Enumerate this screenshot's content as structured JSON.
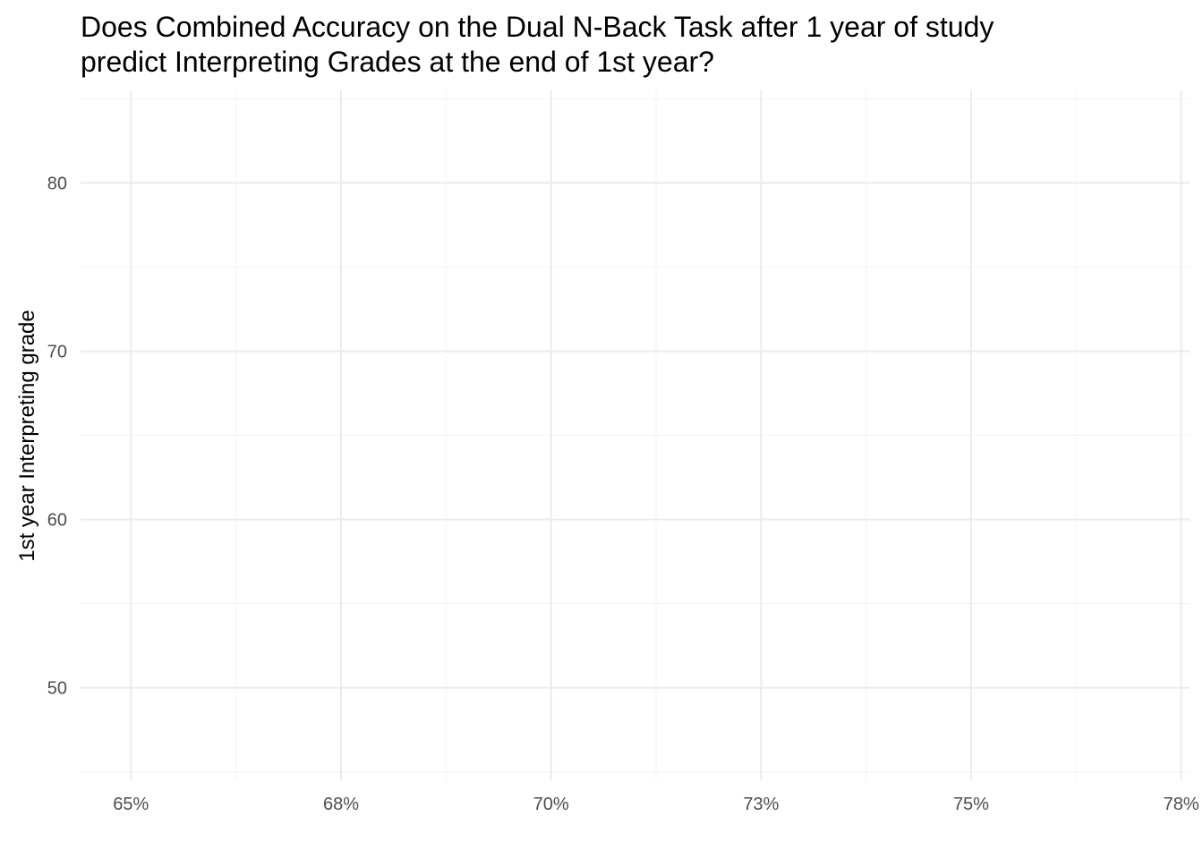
{
  "chart_data": {
    "type": "scatter",
    "title_lines": [
      "Does Combined Accuracy on the Dual N-Back Task after 1 year of study",
      "predict Interpreting Grades at the end of 1st year?"
    ],
    "xlabel": "",
    "ylabel": "1st year Interpreting grade",
    "x_ticks": [
      {
        "value": 0.65,
        "label": "65%"
      },
      {
        "value": 0.675,
        "label": "68%"
      },
      {
        "value": 0.7,
        "label": "70%"
      },
      {
        "value": 0.725,
        "label": "73%"
      },
      {
        "value": 0.75,
        "label": "75%"
      },
      {
        "value": 0.775,
        "label": "78%"
      }
    ],
    "y_ticks": [
      {
        "value": 50,
        "label": "50"
      },
      {
        "value": 60,
        "label": "60"
      },
      {
        "value": 70,
        "label": "70"
      },
      {
        "value": 80,
        "label": "80"
      }
    ],
    "xlim": [
      0.644,
      0.776
    ],
    "ylim": [
      44.5,
      85.5
    ],
    "grid": true,
    "points": []
  }
}
